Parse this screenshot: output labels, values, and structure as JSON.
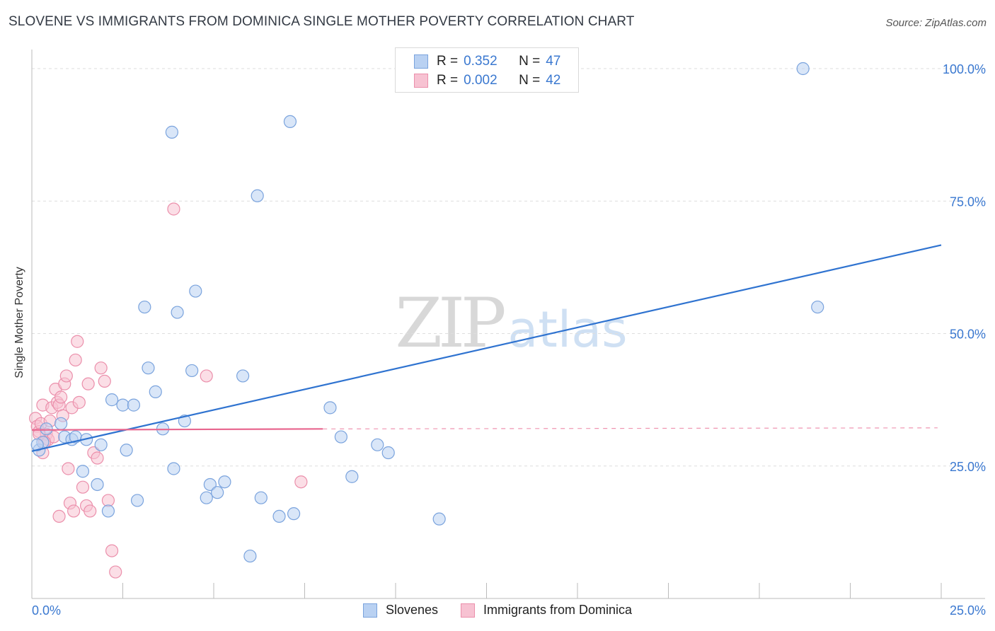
{
  "title": "SLOVENE VS IMMIGRANTS FROM DOMINICA SINGLE MOTHER POVERTY CORRELATION CHART",
  "source": "Source: ZipAtlas.com",
  "watermark": {
    "zip": "ZIP",
    "atlas": "atlas"
  },
  "legend_top": [
    {
      "r_label": "R =",
      "r_value": "0.352",
      "n_label": "N =",
      "n_value": "47"
    },
    {
      "r_label": "R =",
      "r_value": "0.002",
      "n_label": "N =",
      "n_value": "42"
    }
  ],
  "colors": {
    "blue_fill": "#b9d1f2",
    "blue_stroke": "#7aa3dd",
    "blue_line": "#2f73d0",
    "pink_fill": "#f7c2d2",
    "pink_stroke": "#eb8fab",
    "pink_line": "#e8678f",
    "axis_text": "#3a78d0",
    "grid": "#dedede"
  },
  "chart_data": {
    "type": "scatter",
    "xlabel": "",
    "ylabel": "Single Mother Poverty",
    "xlim": [
      0,
      25
    ],
    "ylim": [
      0,
      102
    ],
    "x_tick_labels": [
      {
        "value": 0,
        "label": "0.0%"
      },
      {
        "value": 25,
        "label": "25.0%"
      }
    ],
    "y_tick_labels": [
      {
        "value": 25,
        "label": "25.0%"
      },
      {
        "value": 50,
        "label": "50.0%"
      },
      {
        "value": 75,
        "label": "75.0%"
      },
      {
        "value": 100,
        "label": "100.0%"
      }
    ],
    "x_minor_ticks": [
      0,
      2.5,
      5,
      7.5,
      10,
      12.5,
      15,
      17.5,
      20,
      22.5,
      25
    ],
    "series": [
      {
        "name": "Slovenes",
        "color": "blue",
        "r": 0.352,
        "n": 47,
        "trend": {
          "x": [
            0,
            25
          ],
          "y": [
            27.8,
            66.7
          ]
        },
        "points": [
          [
            0.2,
            28.0
          ],
          [
            0.3,
            29.5
          ],
          [
            0.4,
            32.0
          ],
          [
            0.8,
            33.0
          ],
          [
            0.9,
            30.5
          ],
          [
            1.1,
            30.0
          ],
          [
            1.2,
            30.5
          ],
          [
            1.4,
            24.0
          ],
          [
            1.5,
            30.0
          ],
          [
            1.8,
            21.5
          ],
          [
            1.9,
            29.0
          ],
          [
            2.1,
            16.5
          ],
          [
            2.2,
            37.5
          ],
          [
            2.5,
            36.5
          ],
          [
            2.6,
            28.0
          ],
          [
            2.8,
            36.5
          ],
          [
            2.9,
            18.5
          ],
          [
            3.1,
            55.0
          ],
          [
            3.2,
            43.5
          ],
          [
            3.4,
            39.0
          ],
          [
            3.6,
            32.0
          ],
          [
            3.85,
            88.0
          ],
          [
            3.9,
            24.5
          ],
          [
            4.0,
            54.0
          ],
          [
            4.2,
            33.5
          ],
          [
            4.4,
            43.0
          ],
          [
            4.5,
            58.0
          ],
          [
            4.8,
            19.0
          ],
          [
            4.9,
            21.5
          ],
          [
            5.1,
            20.0
          ],
          [
            5.3,
            22.0
          ],
          [
            5.8,
            42.0
          ],
          [
            6.0,
            8.0
          ],
          [
            6.2,
            76.0
          ],
          [
            6.3,
            19.0
          ],
          [
            6.8,
            15.5
          ],
          [
            7.1,
            90.0
          ],
          [
            7.2,
            16.0
          ],
          [
            8.2,
            36.0
          ],
          [
            8.5,
            30.5
          ],
          [
            8.8,
            23.0
          ],
          [
            9.5,
            29.0
          ],
          [
            9.8,
            27.5
          ],
          [
            11.2,
            15.0
          ],
          [
            21.2,
            100.0
          ],
          [
            21.6,
            55.0
          ],
          [
            0.15,
            29.0
          ]
        ]
      },
      {
        "name": "Immigrants from Dominica",
        "color": "pink",
        "r": 0.002,
        "n": 42,
        "trend": {
          "x": [
            0,
            8
          ],
          "y": [
            31.8,
            32.0
          ]
        },
        "trend_dashed": {
          "x": [
            8,
            24.9
          ],
          "y": [
            32.0,
            32.2
          ]
        },
        "points": [
          [
            0.1,
            34.0
          ],
          [
            0.15,
            32.5
          ],
          [
            0.2,
            31.5
          ],
          [
            0.25,
            33.0
          ],
          [
            0.3,
            36.5
          ],
          [
            0.3,
            27.5
          ],
          [
            0.4,
            31.0
          ],
          [
            0.45,
            30.0
          ],
          [
            0.5,
            33.5
          ],
          [
            0.55,
            36.0
          ],
          [
            0.6,
            30.5
          ],
          [
            0.65,
            39.5
          ],
          [
            0.7,
            37.0
          ],
          [
            0.75,
            36.5
          ],
          [
            0.8,
            38.0
          ],
          [
            0.85,
            34.5
          ],
          [
            0.9,
            40.5
          ],
          [
            0.95,
            42.0
          ],
          [
            1.0,
            24.5
          ],
          [
            1.05,
            18.0
          ],
          [
            1.1,
            36.0
          ],
          [
            1.15,
            16.5
          ],
          [
            1.2,
            45.0
          ],
          [
            1.25,
            48.5
          ],
          [
            1.3,
            37.0
          ],
          [
            1.4,
            21.0
          ],
          [
            1.5,
            17.5
          ],
          [
            1.55,
            40.5
          ],
          [
            1.6,
            16.5
          ],
          [
            1.7,
            27.5
          ],
          [
            1.8,
            26.5
          ],
          [
            1.9,
            43.5
          ],
          [
            2.0,
            41.0
          ],
          [
            2.1,
            18.5
          ],
          [
            2.2,
            9.0
          ],
          [
            2.3,
            5.0
          ],
          [
            3.9,
            73.5
          ],
          [
            4.8,
            42.0
          ],
          [
            7.4,
            22.0
          ],
          [
            0.75,
            15.5
          ],
          [
            0.2,
            31.0
          ],
          [
            0.35,
            29.5
          ]
        ]
      }
    ]
  },
  "legend_bottom": [
    "Slovenes",
    "Immigrants from Dominica"
  ]
}
